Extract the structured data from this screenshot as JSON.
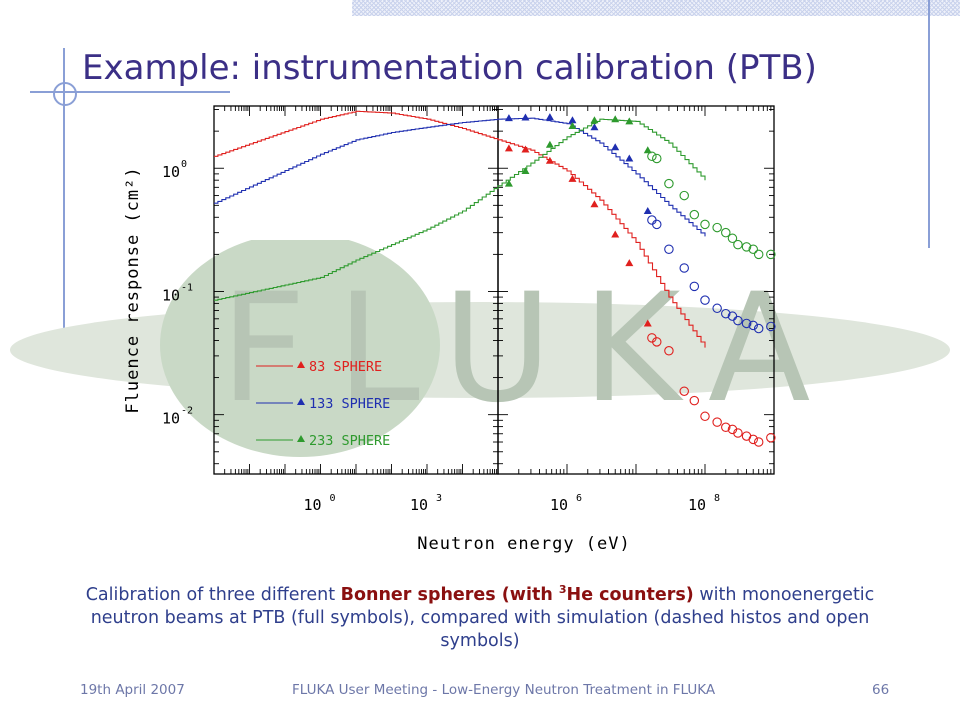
{
  "slide": {
    "title": "Example: instrumentation calibration (PTB)",
    "watermark_text": "FLUKA",
    "caption": {
      "part1": "Calibration of three different ",
      "emph1": "Bonner spheres (with ",
      "emph_sup": "3",
      "emph2": "He counters)",
      "part2": " with monoenergetic neutron beams at PTB (full symbols), compared with simulation (dashed histos and open symbols)"
    },
    "footer": {
      "date": "19th April 2007",
      "center": "FLUKA User Meeting - Low-Energy Neutron Treatment in FLUKA",
      "page": "66"
    },
    "colors": {
      "title": "#3b2f86",
      "caption": "#2f3f8c",
      "caption_emphasis": "#8a1010",
      "footer": "#6d77a8",
      "decor_lines": "#8a9fd6"
    }
  },
  "chart_data": {
    "type": "line",
    "xlabel": "Neutron energy (eV)",
    "ylabel": "Fluence response (cm²)",
    "xscale": "log",
    "yscale": "log",
    "ylim": [
      0.0033,
      3.2
    ],
    "grid": false,
    "legend_position": "bottom-left",
    "x_ticks": [
      {
        "base": "10",
        "exp": "0"
      },
      {
        "base": "10",
        "exp": "3"
      },
      {
        "base": "10",
        "exp": "6"
      },
      {
        "base": "10",
        "exp": "8"
      }
    ],
    "y_ticks": [
      {
        "value": 1,
        "base": "10",
        "exp": "0"
      },
      {
        "value": 0.1,
        "base": "10",
        "exp": "-1"
      },
      {
        "value": 0.01,
        "base": "10",
        "exp": "-2"
      }
    ],
    "series": [
      {
        "name": "83   SPHERE",
        "color": "#e0201e",
        "histogram": {
          "x": [
            0.001,
            1,
            10,
            100,
            1000,
            10000,
            100000,
            300000,
            1000000,
            3000000,
            10000000,
            30000000,
            100000000
          ],
          "y": [
            1.25,
            2.5,
            2.9,
            2.8,
            2.5,
            2.1,
            1.7,
            1.4,
            0.95,
            0.55,
            0.25,
            0.09,
            0.035
          ]
        },
        "measured": {
          "x": [
            144000,
            250000,
            565000,
            1200000,
            2500000,
            5000000,
            8000000,
            14800000
          ],
          "y": [
            1.45,
            1.42,
            1.15,
            0.82,
            0.51,
            0.29,
            0.17,
            0.055
          ]
        },
        "simulated": {
          "x": [
            17000000,
            20000000,
            30000000,
            50000000,
            70000000,
            100000000,
            150000000,
            200000000,
            250000000,
            300000000,
            400000000,
            500000000,
            600000000,
            900000000
          ],
          "y": [
            0.042,
            0.039,
            0.033,
            0.0155,
            0.013,
            0.0097,
            0.0087,
            0.0079,
            0.0076,
            0.0071,
            0.0067,
            0.0063,
            0.006,
            0.0065
          ]
        }
      },
      {
        "name": "133 SPHERE",
        "color": "#1f2fb0",
        "histogram": {
          "x": [
            0.001,
            1,
            10,
            100,
            1000,
            10000,
            100000,
            300000,
            1000000,
            3000000,
            10000000,
            30000000,
            100000000
          ],
          "y": [
            0.52,
            1.3,
            1.7,
            1.95,
            2.15,
            2.35,
            2.5,
            2.55,
            2.3,
            1.6,
            0.9,
            0.5,
            0.28
          ]
        },
        "measured": {
          "x": [
            144000,
            250000,
            565000,
            1200000,
            2500000,
            5000000,
            8000000,
            14800000
          ],
          "y": [
            2.55,
            2.58,
            2.6,
            2.45,
            2.15,
            1.48,
            1.2,
            0.45
          ]
        },
        "simulated": {
          "x": [
            17000000,
            20000000,
            30000000,
            50000000,
            70000000,
            100000000,
            150000000,
            200000000,
            250000000,
            300000000,
            400000000,
            500000000,
            600000000,
            900000000
          ],
          "y": [
            0.38,
            0.35,
            0.22,
            0.155,
            0.11,
            0.085,
            0.073,
            0.066,
            0.063,
            0.058,
            0.055,
            0.053,
            0.05,
            0.052
          ]
        }
      },
      {
        "name": "233 SPHERE",
        "color": "#2e9a2e",
        "histogram": {
          "x": [
            0.001,
            1,
            10,
            100,
            1000,
            10000,
            100000,
            300000,
            1000000,
            3000000,
            10000000,
            30000000,
            100000000
          ],
          "y": [
            0.085,
            0.13,
            0.18,
            0.24,
            0.32,
            0.45,
            0.72,
            1.1,
            1.8,
            2.5,
            2.4,
            1.6,
            0.8
          ]
        },
        "measured": {
          "x": [
            144000,
            250000,
            565000,
            1200000,
            2500000,
            5000000,
            8000000,
            14800000
          ],
          "y": [
            0.75,
            0.95,
            1.55,
            2.2,
            2.45,
            2.5,
            2.4,
            1.4
          ]
        },
        "simulated": {
          "x": [
            17000000,
            20000000,
            30000000,
            50000000,
            70000000,
            100000000,
            150000000,
            200000000,
            250000000,
            300000000,
            400000000,
            500000000,
            600000000,
            900000000
          ],
          "y": [
            1.25,
            1.2,
            0.75,
            0.6,
            0.42,
            0.35,
            0.33,
            0.3,
            0.27,
            0.24,
            0.23,
            0.22,
            0.2,
            0.2
          ]
        }
      }
    ]
  }
}
